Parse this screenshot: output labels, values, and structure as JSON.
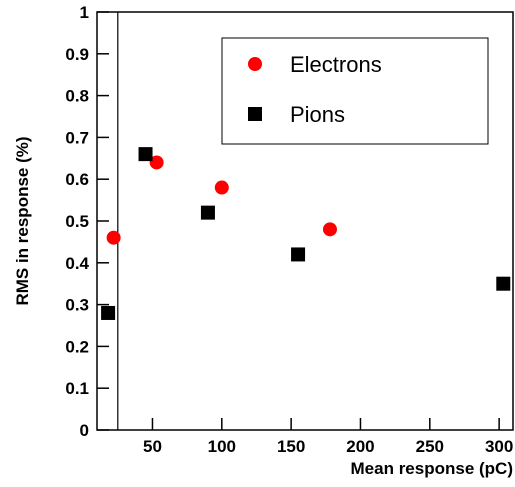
{
  "chart_data": {
    "type": "scatter",
    "xlabel": "Mean response (pC)",
    "ylabel": "RMS in response (%)",
    "xlim": [
      10,
      310
    ],
    "xticks": [
      50,
      100,
      150,
      200,
      250,
      300
    ],
    "ylim": [
      0,
      1
    ],
    "yticks": [
      0,
      0.1,
      0.2,
      0.3,
      0.4,
      0.5,
      0.6,
      0.7,
      0.8,
      0.9,
      1
    ],
    "reference_x": 25,
    "legend": "upper right",
    "series": [
      {
        "name": "Electrons",
        "color": "#ff0000",
        "marker": "circle",
        "x": [
          22,
          53,
          100,
          178
        ],
        "values": [
          0.46,
          0.64,
          0.58,
          0.48
        ]
      },
      {
        "name": "Pions",
        "color": "#000000",
        "marker": "square",
        "x": [
          18,
          45,
          90,
          155,
          303
        ],
        "values": [
          0.28,
          0.66,
          0.52,
          0.42,
          0.35
        ]
      }
    ]
  }
}
